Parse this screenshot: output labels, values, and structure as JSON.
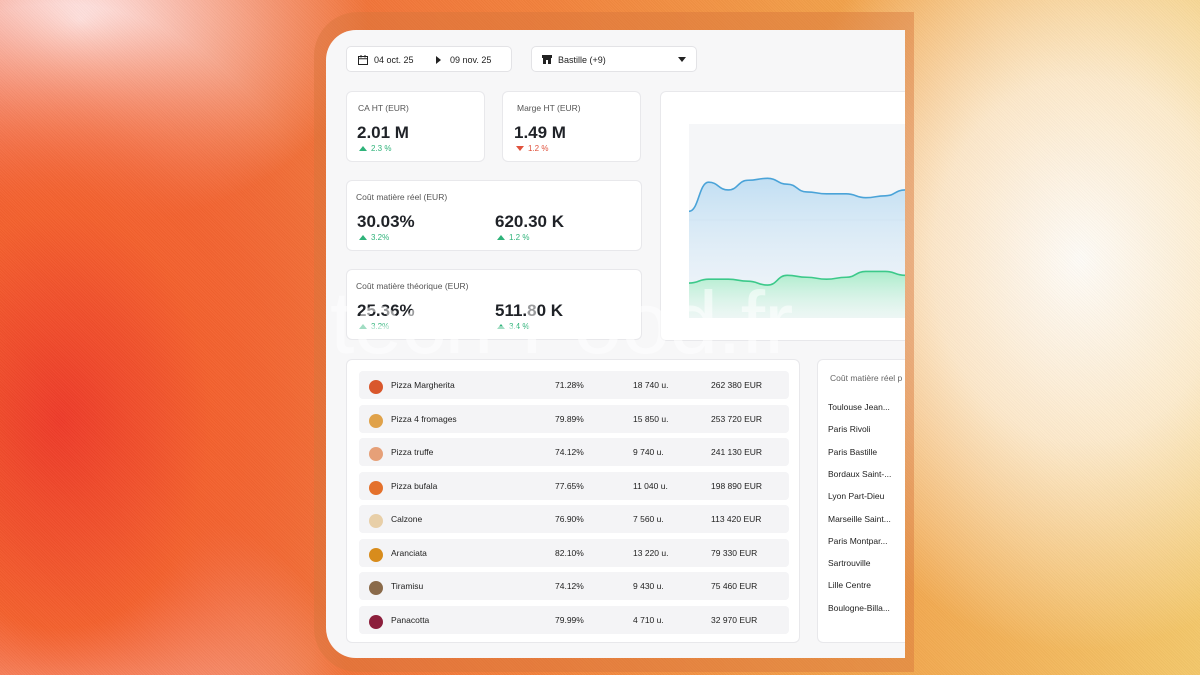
{
  "filters": {
    "date_start": "04 oct. 25",
    "date_end": "09 nov. 25",
    "location": "Bastille (+9)"
  },
  "kpis": {
    "ca": {
      "title": "CA HT (EUR)",
      "value": "2.01 M",
      "delta": "2.3 %",
      "trend": "up"
    },
    "marge": {
      "title": "Marge HT (EUR)",
      "value": "1.49 M",
      "delta": "1.2 %",
      "trend": "down"
    },
    "cout_reel": {
      "title": "Coût matière réel (EUR)",
      "pct_value": "30.03%",
      "pct_delta": "3.2%",
      "amount_value": "620.30 K",
      "amount_delta": "1.2 %"
    },
    "cout_theorique": {
      "title": "Coût matière théorique (EUR)",
      "pct_value": "25.36%",
      "pct_delta": "3.2%",
      "amount_value": "511.80 K",
      "amount_delta": "3.4 %"
    }
  },
  "chart_data": {
    "type": "area",
    "series": [
      {
        "color": "#4aa3d8",
        "values": [
          0.55,
          0.7,
          0.66,
          0.71,
          0.72,
          0.69,
          0.65,
          0.64,
          0.64,
          0.62,
          0.63,
          0.66
        ]
      },
      {
        "color": "#3cc98a",
        "values": [
          0.18,
          0.2,
          0.2,
          0.19,
          0.17,
          0.22,
          0.21,
          0.2,
          0.21,
          0.24,
          0.24,
          0.22
        ]
      }
    ]
  },
  "products": [
    {
      "name": "Pizza Margherita",
      "pct": "71.28%",
      "qty": "18 740  u.",
      "revenue": "262 380 EUR",
      "color": "#d9572c"
    },
    {
      "name": "Pizza 4 fromages",
      "pct": "79.89%",
      "qty": "15 850  u.",
      "revenue": "253 720 EUR",
      "color": "#e0a24a"
    },
    {
      "name": "Pizza truffe",
      "pct": "74.12%",
      "qty": "9 740  u.",
      "revenue": "241 130 EUR",
      "color": "#e6a078"
    },
    {
      "name": "Pizza bufala",
      "pct": "77.65%",
      "qty": "11 040  u.",
      "revenue": "198 890 EUR",
      "color": "#e4712c"
    },
    {
      "name": "Calzone",
      "pct": "76.90%",
      "qty": "7 560  u.",
      "revenue": "113 420 EUR",
      "color": "#e8cfa8"
    },
    {
      "name": "Aranciata",
      "pct": "82.10%",
      "qty": "13 220  u.",
      "revenue": "79 330 EUR",
      "color": "#d88c1c"
    },
    {
      "name": "Tiramisu",
      "pct": "74.12%",
      "qty": "9 430  u.",
      "revenue": "75 460  EUR",
      "color": "#8a6a4a"
    },
    {
      "name": "Panacotta",
      "pct": "79.99%",
      "qty": "4 710  u.",
      "revenue": "32 970 EUR",
      "color": "#8c1f3c"
    }
  ],
  "sites_panel": {
    "title": "Coût matière réel p",
    "sites": [
      "Toulouse Jean...",
      "Paris Rivoli",
      "Paris Bastille",
      "Bordaux Saint-...",
      "Lyon Part-Dieu",
      "Marseille Saint...",
      "Paris Montpar...",
      "Sartrouville",
      "Lille Centre",
      "Boulogne-Billa..."
    ]
  },
  "watermark": "tech-Food.fr",
  "colors": {
    "accent_up": "#2fb37a",
    "accent_down": "#e0523d"
  }
}
